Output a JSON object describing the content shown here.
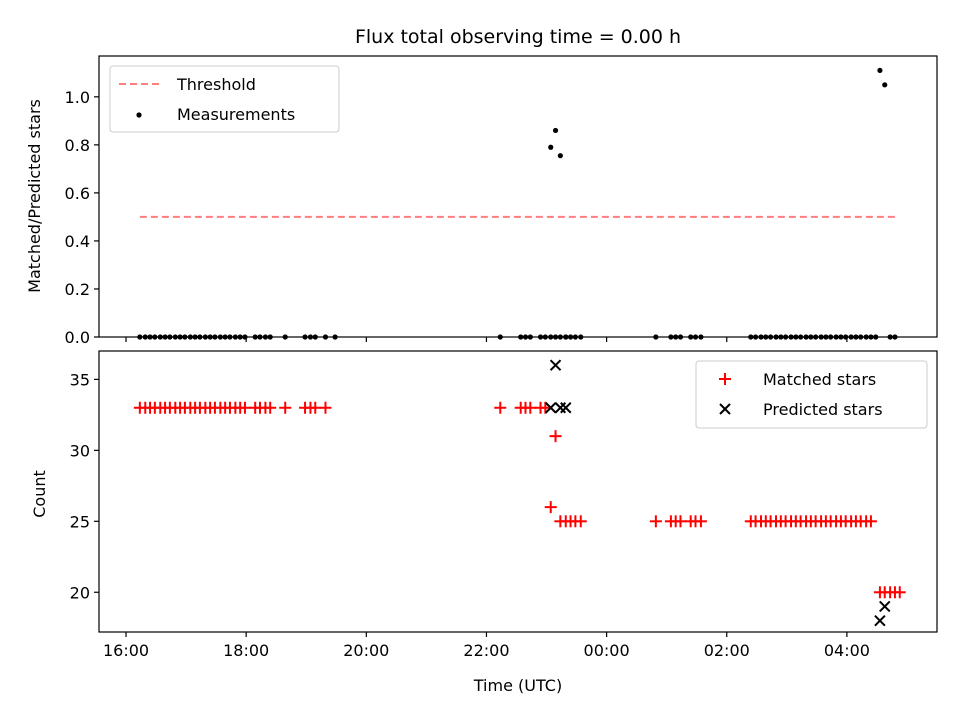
{
  "chart_data": [
    {
      "type": "scatter",
      "title": "Flux total observing time = 0.00 h",
      "ylabel": "Matched/Predicted stars",
      "xlabel": "",
      "x_unit": "hours since 16:00 UTC on the time axis",
      "xlim": [
        -0.45,
        13.5
      ],
      "ylim": [
        0,
        1.17
      ],
      "yticks": [
        "0.0",
        "0.2",
        "0.4",
        "0.6",
        "0.8",
        "1.0"
      ],
      "legend_position": "top-left",
      "grid": false,
      "series": [
        {
          "name": "Threshold",
          "kind": "dashed-line",
          "color": "#ff7f7f",
          "x": [
            0.23,
            12.8
          ],
          "y": [
            0.5,
            0.5
          ]
        },
        {
          "name": "Measurements",
          "kind": "dot",
          "color": "#000000",
          "x": [
            0.23,
            0.32,
            0.4,
            0.48,
            0.57,
            0.65,
            0.73,
            0.82,
            0.9,
            0.98,
            1.07,
            1.15,
            1.23,
            1.32,
            1.4,
            1.48,
            1.57,
            1.65,
            1.73,
            1.82,
            1.9,
            1.98,
            2.15,
            2.23,
            2.32,
            2.4,
            2.65,
            2.98,
            3.07,
            3.15,
            3.32,
            3.48,
            6.23,
            6.57,
            6.65,
            6.73,
            6.9,
            6.98,
            7.07,
            7.15,
            7.23,
            7.32,
            7.07,
            7.15,
            7.23,
            7.32,
            7.4,
            7.48,
            7.57,
            8.82,
            9.07,
            9.15,
            9.23,
            9.4,
            9.48,
            9.57,
            10.4,
            10.48,
            10.57,
            10.65,
            10.73,
            10.82,
            10.9,
            10.98,
            11.07,
            11.15,
            11.23,
            11.32,
            11.4,
            11.48,
            11.57,
            11.65,
            11.73,
            11.82,
            11.9,
            11.98,
            12.07,
            12.15,
            12.23,
            12.32,
            12.4,
            12.48,
            12.55,
            12.63,
            12.72,
            12.8
          ],
          "y": [
            0,
            0,
            0,
            0,
            0,
            0,
            0,
            0,
            0,
            0,
            0,
            0,
            0,
            0,
            0,
            0,
            0,
            0,
            0,
            0,
            0,
            0,
            0,
            0,
            0,
            0,
            0,
            0,
            0,
            0,
            0,
            0,
            0,
            0,
            0,
            0,
            0,
            0,
            0,
            0,
            0,
            0,
            0.79,
            0.86,
            0.755,
            0,
            0,
            0,
            0,
            0,
            0,
            0,
            0,
            0,
            0,
            0,
            0,
            0,
            0,
            0,
            0,
            0,
            0,
            0,
            0,
            0,
            0,
            0,
            0,
            0,
            0,
            0,
            0,
            0,
            0,
            0,
            0,
            0,
            0,
            0,
            0,
            0,
            1.11,
            1.05,
            0,
            0
          ]
        }
      ]
    },
    {
      "type": "scatter",
      "title": "",
      "ylabel": "Count",
      "xlabel": "Time (UTC)",
      "xlim": [
        -0.45,
        13.5
      ],
      "ylim": [
        17.2,
        37.0
      ],
      "yticks": [
        "20",
        "25",
        "30",
        "35"
      ],
      "xticks": [
        "16:00",
        "18:00",
        "20:00",
        "22:00",
        "00:00",
        "02:00",
        "04:00"
      ],
      "legend_position": "top-right",
      "grid": false,
      "series": [
        {
          "name": "Matched stars",
          "kind": "plus",
          "color": "#ff0000",
          "x": [
            0.23,
            0.32,
            0.4,
            0.48,
            0.57,
            0.65,
            0.73,
            0.82,
            0.9,
            0.98,
            1.07,
            1.15,
            1.23,
            1.32,
            1.4,
            1.48,
            1.57,
            1.65,
            1.73,
            1.82,
            1.9,
            1.98,
            2.15,
            2.23,
            2.32,
            2.4,
            2.65,
            2.98,
            3.07,
            3.15,
            3.32,
            6.23,
            6.57,
            6.65,
            6.73,
            6.9,
            6.98,
            7.07,
            7.15,
            7.23,
            7.32,
            7.4,
            7.48,
            7.57,
            8.82,
            9.07,
            9.15,
            9.23,
            9.4,
            9.48,
            9.57,
            10.4,
            10.48,
            10.57,
            10.65,
            10.73,
            10.82,
            10.9,
            10.98,
            11.07,
            11.15,
            11.23,
            11.32,
            11.4,
            11.48,
            11.57,
            11.65,
            11.73,
            11.82,
            11.9,
            11.98,
            12.07,
            12.15,
            12.23,
            12.32,
            12.4,
            12.55,
            12.63,
            12.72,
            12.8,
            12.88
          ],
          "y": [
            33,
            33,
            33,
            33,
            33,
            33,
            33,
            33,
            33,
            33,
            33,
            33,
            33,
            33,
            33,
            33,
            33,
            33,
            33,
            33,
            33,
            33,
            33,
            33,
            33,
            33,
            33,
            33,
            33,
            33,
            33,
            33,
            33,
            33,
            33,
            33,
            33,
            26,
            31,
            25,
            25,
            25,
            25,
            25,
            25,
            25,
            25,
            25,
            25,
            25,
            25,
            25,
            25,
            25,
            25,
            25,
            25,
            25,
            25,
            25,
            25,
            25,
            25,
            25,
            25,
            25,
            25,
            25,
            25,
            25,
            25,
            25,
            25,
            25,
            25,
            25,
            20,
            20,
            20,
            20,
            20
          ]
        },
        {
          "name": "Predicted stars",
          "kind": "x",
          "color": "#000000",
          "x": [
            7.07,
            7.15,
            7.23,
            7.32,
            12.55,
            12.63
          ],
          "y": [
            33,
            36,
            33,
            33,
            18,
            19
          ]
        }
      ]
    }
  ]
}
